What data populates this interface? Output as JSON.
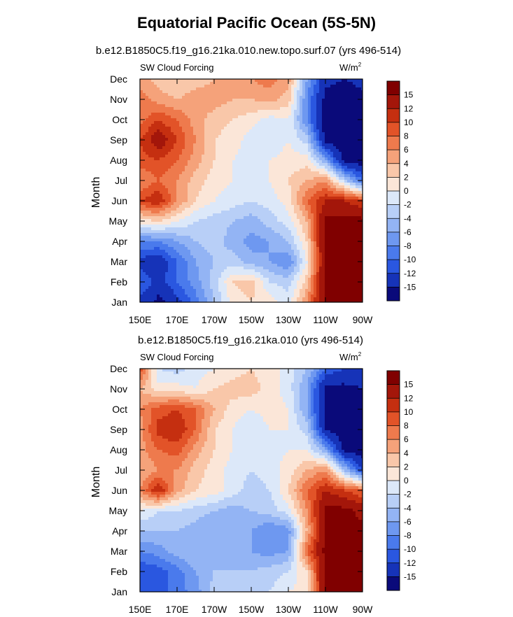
{
  "title": "Equatorial Pacific Ocean (5S-5N)",
  "colors": {
    "levels": [
      -15,
      -12,
      -10,
      -8,
      -6,
      -4,
      -2,
      0,
      2,
      4,
      6,
      8,
      10,
      12,
      15
    ],
    "palette": [
      "#0a0a7a",
      "#1633b8",
      "#2a57e0",
      "#4a7aec",
      "#6e98f0",
      "#93b4f4",
      "#b8cff7",
      "#dce8f9",
      "#fbe6d8",
      "#f9c7a9",
      "#f5a27a",
      "#ee7a4d",
      "#e25328",
      "#c52f10",
      "#a3160a",
      "#800000"
    ]
  },
  "chart_data": [
    {
      "type": "heatmap",
      "subtitle": "b.e12.B1850C5.f19_g16.21ka.010.new.topo.surf.07 (yrs 496-514)",
      "left_label": "SW Cloud Forcing",
      "units": "W/m",
      "units_sup": "2",
      "ylabel": "Month",
      "x_ticks": [
        "150E",
        "170E",
        "170W",
        "150W",
        "130W",
        "110W",
        "90W"
      ],
      "x_values": [
        150,
        170,
        190,
        210,
        230,
        250,
        270
      ],
      "y_ticks": [
        "Jan",
        "Feb",
        "Mar",
        "Apr",
        "May",
        "Jun",
        "Jul",
        "Aug",
        "Sep",
        "Oct",
        "Nov",
        "Dec"
      ],
      "colorbar_labels": [
        "15",
        "12",
        "10",
        "8",
        "6",
        "4",
        "2",
        "0",
        "-2",
        "-4",
        "-6",
        "-8",
        "-10",
        "-12",
        "-15"
      ],
      "grid_lon": [
        150,
        160,
        170,
        180,
        190,
        200,
        210,
        220,
        230,
        240,
        250,
        260,
        270
      ],
      "values": [
        [
          -13,
          -16,
          -13,
          -9,
          -4,
          1,
          2,
          1,
          -1,
          6,
          16,
          16,
          16
        ],
        [
          -10,
          -13,
          -10,
          -7,
          -3,
          2,
          3,
          -2,
          -3,
          3,
          16,
          16,
          16
        ],
        [
          -13,
          -14,
          -10,
          -6,
          -4,
          -3,
          -5,
          -6,
          -8,
          0,
          16,
          16,
          16
        ],
        [
          -8,
          -8,
          -6,
          -4,
          -3,
          -5,
          -7,
          -6,
          -4,
          2,
          16,
          16,
          16
        ],
        [
          1,
          2,
          0,
          -2,
          -3,
          -4,
          -5,
          -3,
          -1,
          4,
          16,
          16,
          16
        ],
        [
          10,
          12,
          6,
          2,
          0,
          -1,
          -2,
          -1,
          1,
          8,
          12,
          12,
          10
        ],
        [
          6,
          8,
          6,
          3,
          1,
          0,
          -1,
          0,
          2,
          4,
          6,
          -3,
          -10
        ],
        [
          9,
          10,
          8,
          5,
          2,
          0,
          -1,
          0,
          1,
          1,
          -6,
          -16,
          -17
        ],
        [
          10,
          14,
          10,
          6,
          2,
          1,
          -1,
          -2,
          0,
          -3,
          -16,
          -17,
          -17
        ],
        [
          7,
          10,
          8,
          5,
          3,
          2,
          1,
          -1,
          0,
          -8,
          -17,
          -17,
          -17
        ],
        [
          7,
          5,
          4,
          5,
          5,
          4,
          4,
          5,
          3,
          -8,
          -16,
          -17,
          -16
        ],
        [
          5,
          3,
          2,
          3,
          4,
          5,
          6,
          7,
          5,
          -6,
          -14,
          -15,
          -14
        ]
      ]
    },
    {
      "type": "heatmap",
      "subtitle": "b.e12.B1850C5.f19_g16.21ka.010 (yrs 496-514)",
      "left_label": "SW Cloud Forcing",
      "units": "W/m",
      "units_sup": "2",
      "ylabel": "Month",
      "x_ticks": [
        "150E",
        "170E",
        "170W",
        "150W",
        "130W",
        "110W",
        "90W"
      ],
      "x_values": [
        150,
        170,
        190,
        210,
        230,
        250,
        270
      ],
      "y_ticks": [
        "Jan",
        "Feb",
        "Mar",
        "Apr",
        "May",
        "Jun",
        "Jul",
        "Aug",
        "Sep",
        "Oct",
        "Nov",
        "Dec"
      ],
      "colorbar_labels": [
        "15",
        "12",
        "10",
        "8",
        "6",
        "4",
        "2",
        "0",
        "-2",
        "-4",
        "-6",
        "-8",
        "-10",
        "-12",
        "-15"
      ],
      "grid_lon": [
        150,
        160,
        170,
        180,
        190,
        200,
        210,
        220,
        230,
        240,
        250,
        260,
        270
      ],
      "values": [
        [
          -12,
          -11,
          -9,
          -7,
          -3,
          -2,
          -3,
          -2,
          0,
          1,
          16,
          16,
          16
        ],
        [
          -12,
          -11,
          -9,
          -6,
          -4,
          -4,
          -4,
          -3,
          -2,
          2,
          16,
          16,
          16
        ],
        [
          -8,
          -7,
          -5,
          -4,
          -5,
          -5,
          -6,
          -7,
          -6,
          8,
          16,
          16,
          16
        ],
        [
          -4,
          -4,
          -4,
          -5,
          -6,
          -5,
          -6,
          -8,
          -7,
          4,
          16,
          16,
          16
        ],
        [
          0,
          -2,
          -2,
          -3,
          -4,
          -5,
          -4,
          -3,
          -1,
          6,
          16,
          16,
          14
        ],
        [
          6,
          12,
          5,
          2,
          1,
          -1,
          -3,
          -2,
          2,
          8,
          12,
          10,
          8
        ],
        [
          4,
          6,
          6,
          3,
          1,
          -1,
          -2,
          -1,
          1,
          4,
          6,
          -4,
          -12
        ],
        [
          5,
          8,
          9,
          5,
          2,
          0,
          -1,
          -1,
          0,
          0,
          -6,
          -16,
          -17
        ],
        [
          5,
          11,
          12,
          8,
          2,
          0,
          -2,
          0,
          0,
          -3,
          -15,
          -17,
          -17
        ],
        [
          6,
          9,
          10,
          8,
          4,
          1,
          0,
          1,
          0,
          -6,
          -16,
          -17,
          -17
        ],
        [
          4,
          1,
          1,
          0,
          2,
          3,
          3,
          1,
          -1,
          -6,
          -16,
          -16,
          -15
        ],
        [
          10,
          -2,
          -3,
          -1,
          0,
          1,
          2,
          1,
          -1,
          -4,
          -10,
          -12,
          -13
        ]
      ]
    }
  ]
}
